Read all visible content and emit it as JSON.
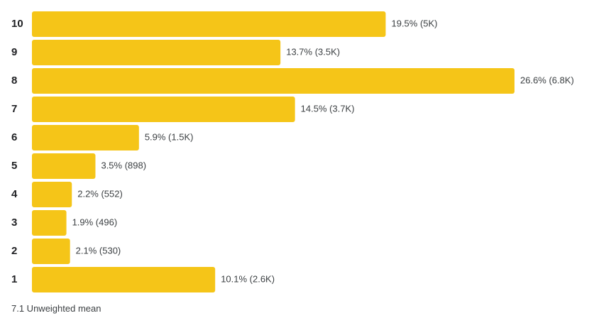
{
  "chart_data": {
    "type": "bar",
    "orientation": "horizontal",
    "bar_color": "#F5C518",
    "categories": [
      "10",
      "9",
      "8",
      "7",
      "6",
      "5",
      "4",
      "3",
      "2",
      "1"
    ],
    "percent": [
      19.5,
      13.7,
      26.6,
      14.5,
      5.9,
      3.5,
      2.2,
      1.9,
      2.1,
      10.1
    ],
    "labels": [
      "19.5% (5K)",
      "13.7% (3.5K)",
      "26.6% (6.8K)",
      "14.5% (3.7K)",
      "5.9% (1.5K)",
      "3.5% (898)",
      "2.2% (552)",
      "1.9% (496)",
      "2.1% (530)",
      "10.1% (2.6K)"
    ],
    "grid": false,
    "legend": "none"
  },
  "footer": {
    "mean_text": "7.1 Unweighted mean"
  }
}
